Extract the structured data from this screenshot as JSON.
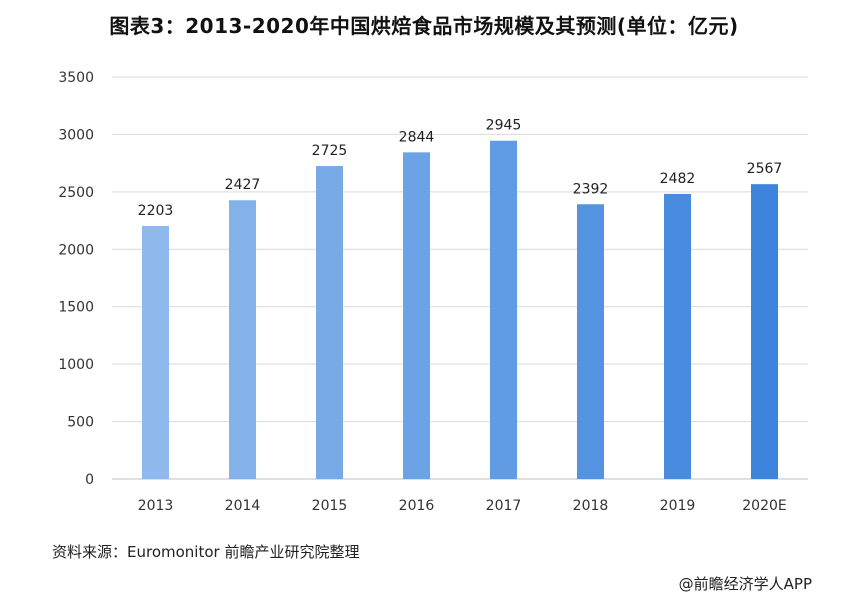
{
  "title": "图表3：2013-2020年中国烘焙食品市场规模及其预测(单位：亿元)",
  "source": "资料来源：Euromonitor 前瞻产业研究院整理",
  "credit": "@前瞻经济学人APP",
  "colors": {
    "bar_start": "#8fb9ec",
    "bar_end": "#3d84dd",
    "grid": "#d9d9d9",
    "axis": "#bfbfbf"
  },
  "chart_data": {
    "type": "bar",
    "categories": [
      "2013",
      "2014",
      "2015",
      "2016",
      "2017",
      "2018",
      "2019",
      "2020E"
    ],
    "series": [
      {
        "values": [
          2203,
          2427,
          2725,
          2844,
          2945,
          2392,
          2482,
          2567
        ]
      }
    ],
    "title": "图表3：2013-2020年中国烘焙食品市场规模及其预测(单位：亿元)",
    "xlabel": "",
    "ylabel": "",
    "ylim": [
      0,
      3500
    ],
    "yticks": [
      0,
      500,
      1000,
      1500,
      2000,
      2500,
      3000,
      3500
    ],
    "grid": true,
    "legend": "none"
  }
}
